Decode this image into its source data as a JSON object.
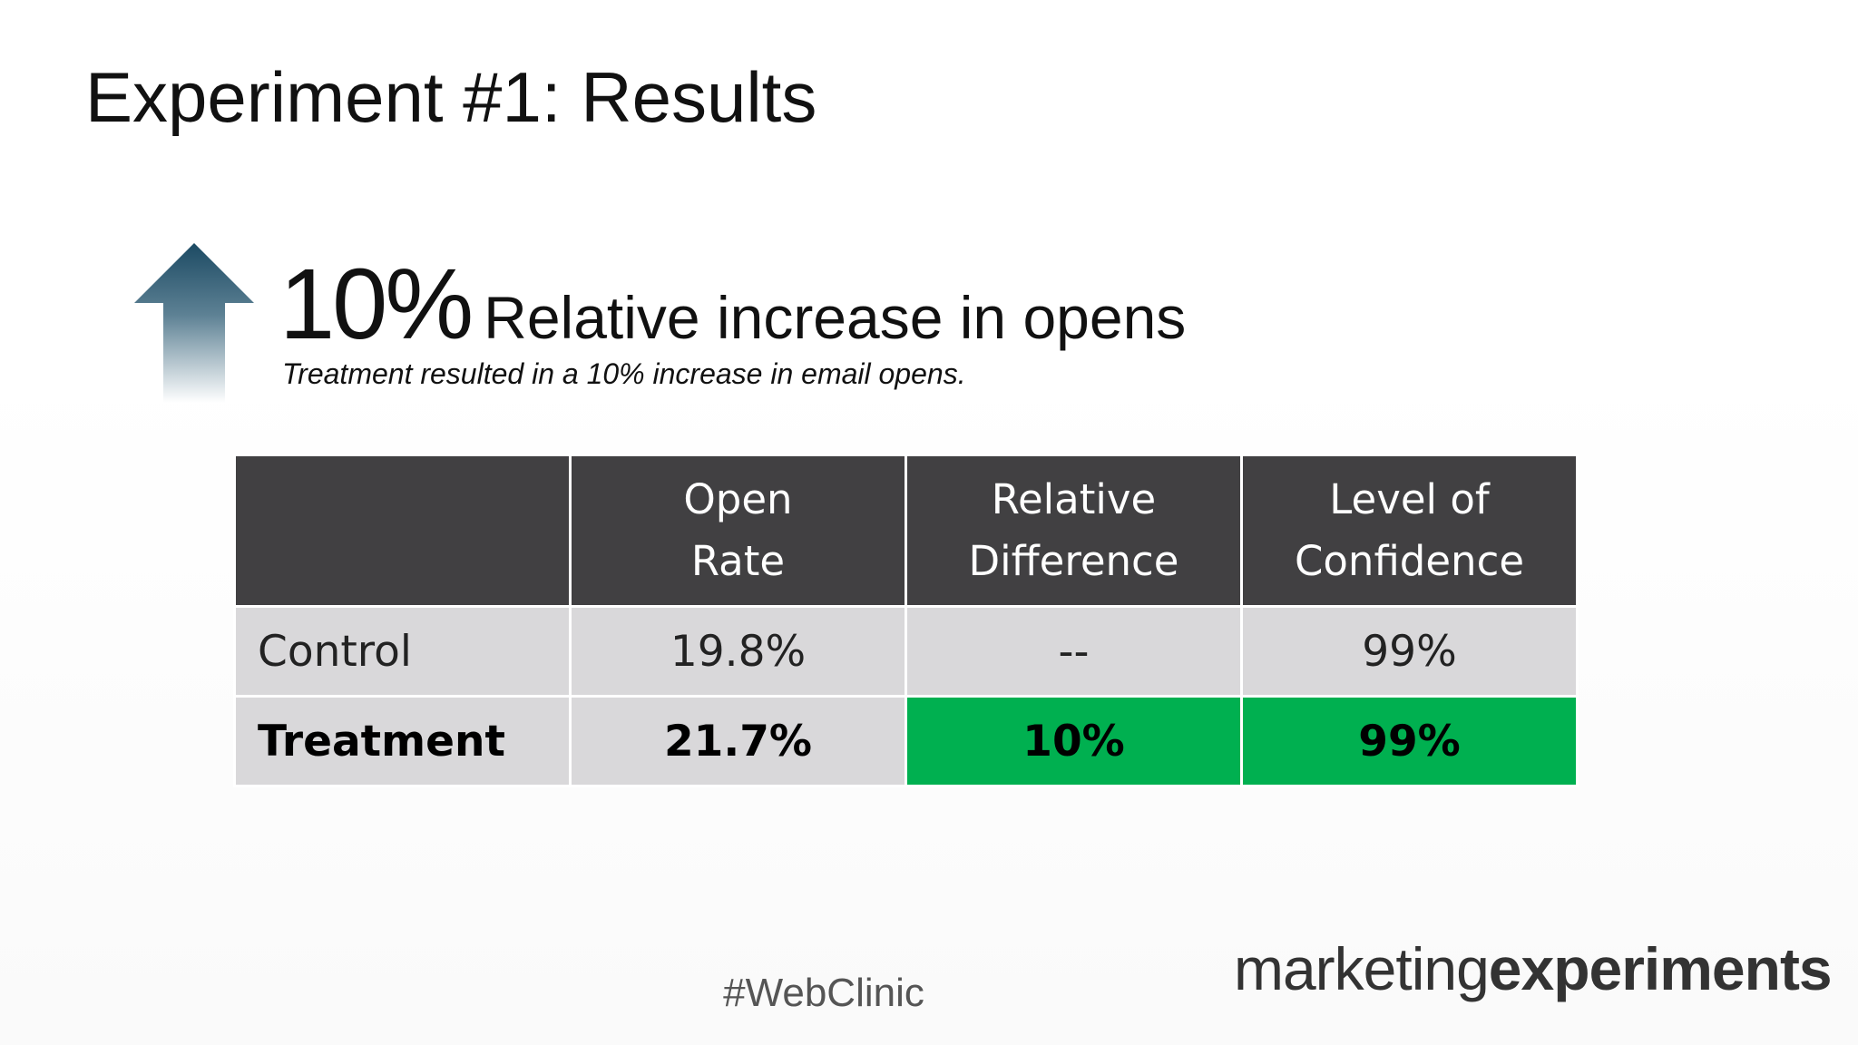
{
  "header": {
    "title": "Experiment #1: Results"
  },
  "headline": {
    "percent": "10%",
    "text": "Relative increase in opens",
    "subtitle": "Treatment resulted in a 10% increase in email opens."
  },
  "table": {
    "columns": [
      [
        "Open",
        "Rate"
      ],
      [
        "Relative",
        "Difference"
      ],
      [
        "Level of",
        "Confidence"
      ]
    ],
    "rows": [
      [
        "Control",
        "19.8%",
        "--",
        "99%"
      ],
      [
        "Treatment",
        "21.7%",
        "10%",
        "99%"
      ]
    ]
  },
  "footer": {
    "hashtag": "#WebClinic",
    "logo": [
      "marketing",
      "experiments"
    ]
  }
}
